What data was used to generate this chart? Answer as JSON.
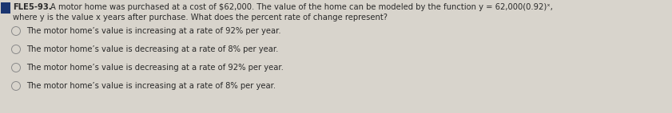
{
  "background_color": "#d8d4cc",
  "header_text": "FLE5-93.",
  "header_bg": "#1a3570",
  "question_line1": "A motor home was purchased at a cost of $62,000. The value of the home can be modeled by the function y = 62,000(0.92)ˣ,",
  "question_line2": "where y is the value x years after purchase. What does the percent rate of change represent?",
  "choices": [
    "The motor home’s value is increasing at a rate of 92% per year.",
    "The motor home’s value is decreasing at a rate of 8% per year.",
    "The motor home’s value is decreasing at a rate of 92% per year.",
    "The motor home’s value is increasing at a rate of 8% per year."
  ],
  "text_color": "#2a2a2a",
  "font_size_question": 7.2,
  "font_size_choices": 7.2,
  "circle_color": "#8a8a8a",
  "header_color": "#1a3570",
  "header_font_size": 7.2
}
